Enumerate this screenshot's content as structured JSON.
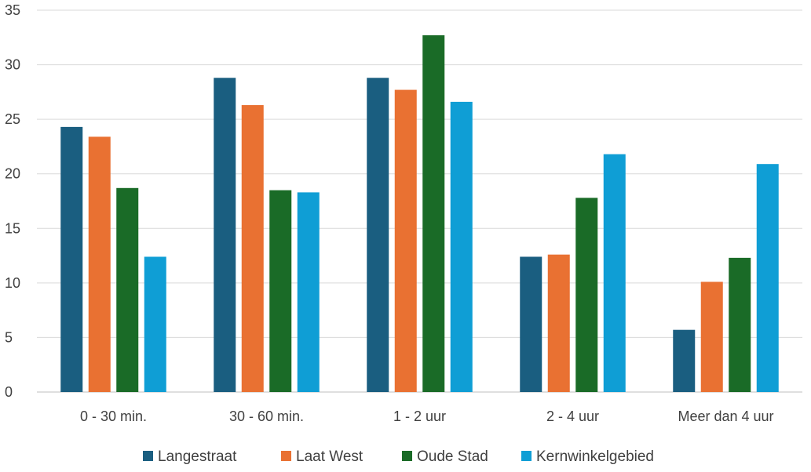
{
  "chart_data": {
    "type": "bar",
    "title": "",
    "xlabel": "",
    "ylabel": "",
    "categories": [
      "0 - 30 min.",
      "30 - 60 min.",
      "1 - 2 uur",
      "2 - 4 uur",
      "Meer dan 4 uur"
    ],
    "series": [
      {
        "name": "Langestraat",
        "color": "#1a5e80",
        "values": [
          24.3,
          28.8,
          28.8,
          12.4,
          5.7
        ]
      },
      {
        "name": "Laat West",
        "color": "#e97132",
        "values": [
          23.4,
          26.3,
          27.7,
          12.6,
          10.1
        ]
      },
      {
        "name": "Oude Stad",
        "color": "#1a6b27",
        "values": [
          18.7,
          18.5,
          32.7,
          17.8,
          12.3
        ]
      },
      {
        "name": "Kernwinkelgebied",
        "color": "#0f9ed5",
        "values": [
          12.4,
          18.3,
          26.6,
          21.8,
          20.9
        ]
      }
    ],
    "ylim": [
      0,
      35
    ],
    "yticks": [
      0,
      5,
      10,
      15,
      20,
      25,
      30,
      35
    ],
    "grid": true,
    "legend": "bottom"
  }
}
